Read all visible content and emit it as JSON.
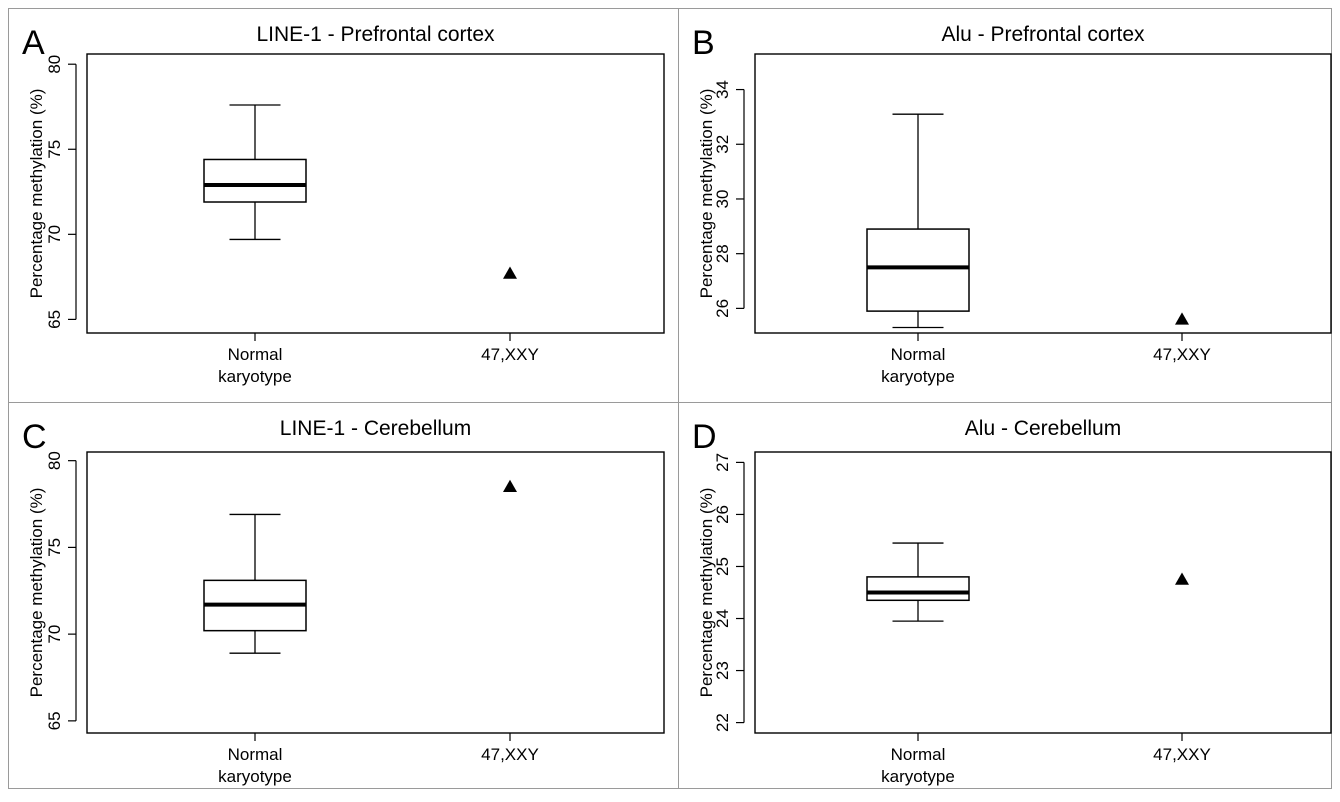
{
  "chart_data": [
    {
      "panel": "A",
      "type": "box",
      "title": "LINE-1 - Prefrontal cortex",
      "ylabel": "Percentage methylation (%)",
      "ylim": [
        64.2,
        80.6
      ],
      "yticks": [
        65,
        70,
        75,
        80
      ],
      "categories": [
        [
          "Normal",
          "karyotype"
        ],
        [
          "47,XXY"
        ]
      ],
      "box": {
        "min": 69.7,
        "q1": 71.9,
        "median": 72.9,
        "q3": 74.4,
        "max": 77.6
      },
      "point": 67.7
    },
    {
      "panel": "B",
      "type": "box",
      "title": "Alu - Prefrontal cortex",
      "ylabel": "Percentage methylation (%)",
      "ylim": [
        25.1,
        35.3
      ],
      "yticks": [
        26,
        28,
        30,
        32,
        34
      ],
      "categories": [
        [
          "Normal",
          "karyotype"
        ],
        [
          "47,XXY"
        ]
      ],
      "box": {
        "min": 25.3,
        "q1": 25.9,
        "median": 27.5,
        "q3": 28.9,
        "max": 33.1
      },
      "point": 25.6
    },
    {
      "panel": "C",
      "type": "box",
      "title": "LINE-1 - Cerebellum",
      "ylabel": "Percentage methylation (%)",
      "ylim": [
        64.3,
        80.5
      ],
      "yticks": [
        65,
        70,
        75,
        80
      ],
      "categories": [
        [
          "Normal",
          "karyotype"
        ],
        [
          "47,XXY"
        ]
      ],
      "box": {
        "min": 68.9,
        "q1": 70.2,
        "median": 71.7,
        "q3": 73.1,
        "max": 76.9
      },
      "point": 78.5
    },
    {
      "panel": "D",
      "type": "box",
      "title": "Alu - Cerebellum",
      "ylabel": "Percentage methylation (%)",
      "ylim": [
        21.8,
        27.2
      ],
      "yticks": [
        22,
        23,
        24,
        25,
        26,
        27
      ],
      "categories": [
        [
          "Normal",
          "karyotype"
        ],
        [
          "47,XXY"
        ]
      ],
      "box": {
        "min": 23.95,
        "q1": 24.35,
        "median": 24.5,
        "q3": 24.8,
        "max": 25.45
      },
      "point": 24.75
    }
  ]
}
